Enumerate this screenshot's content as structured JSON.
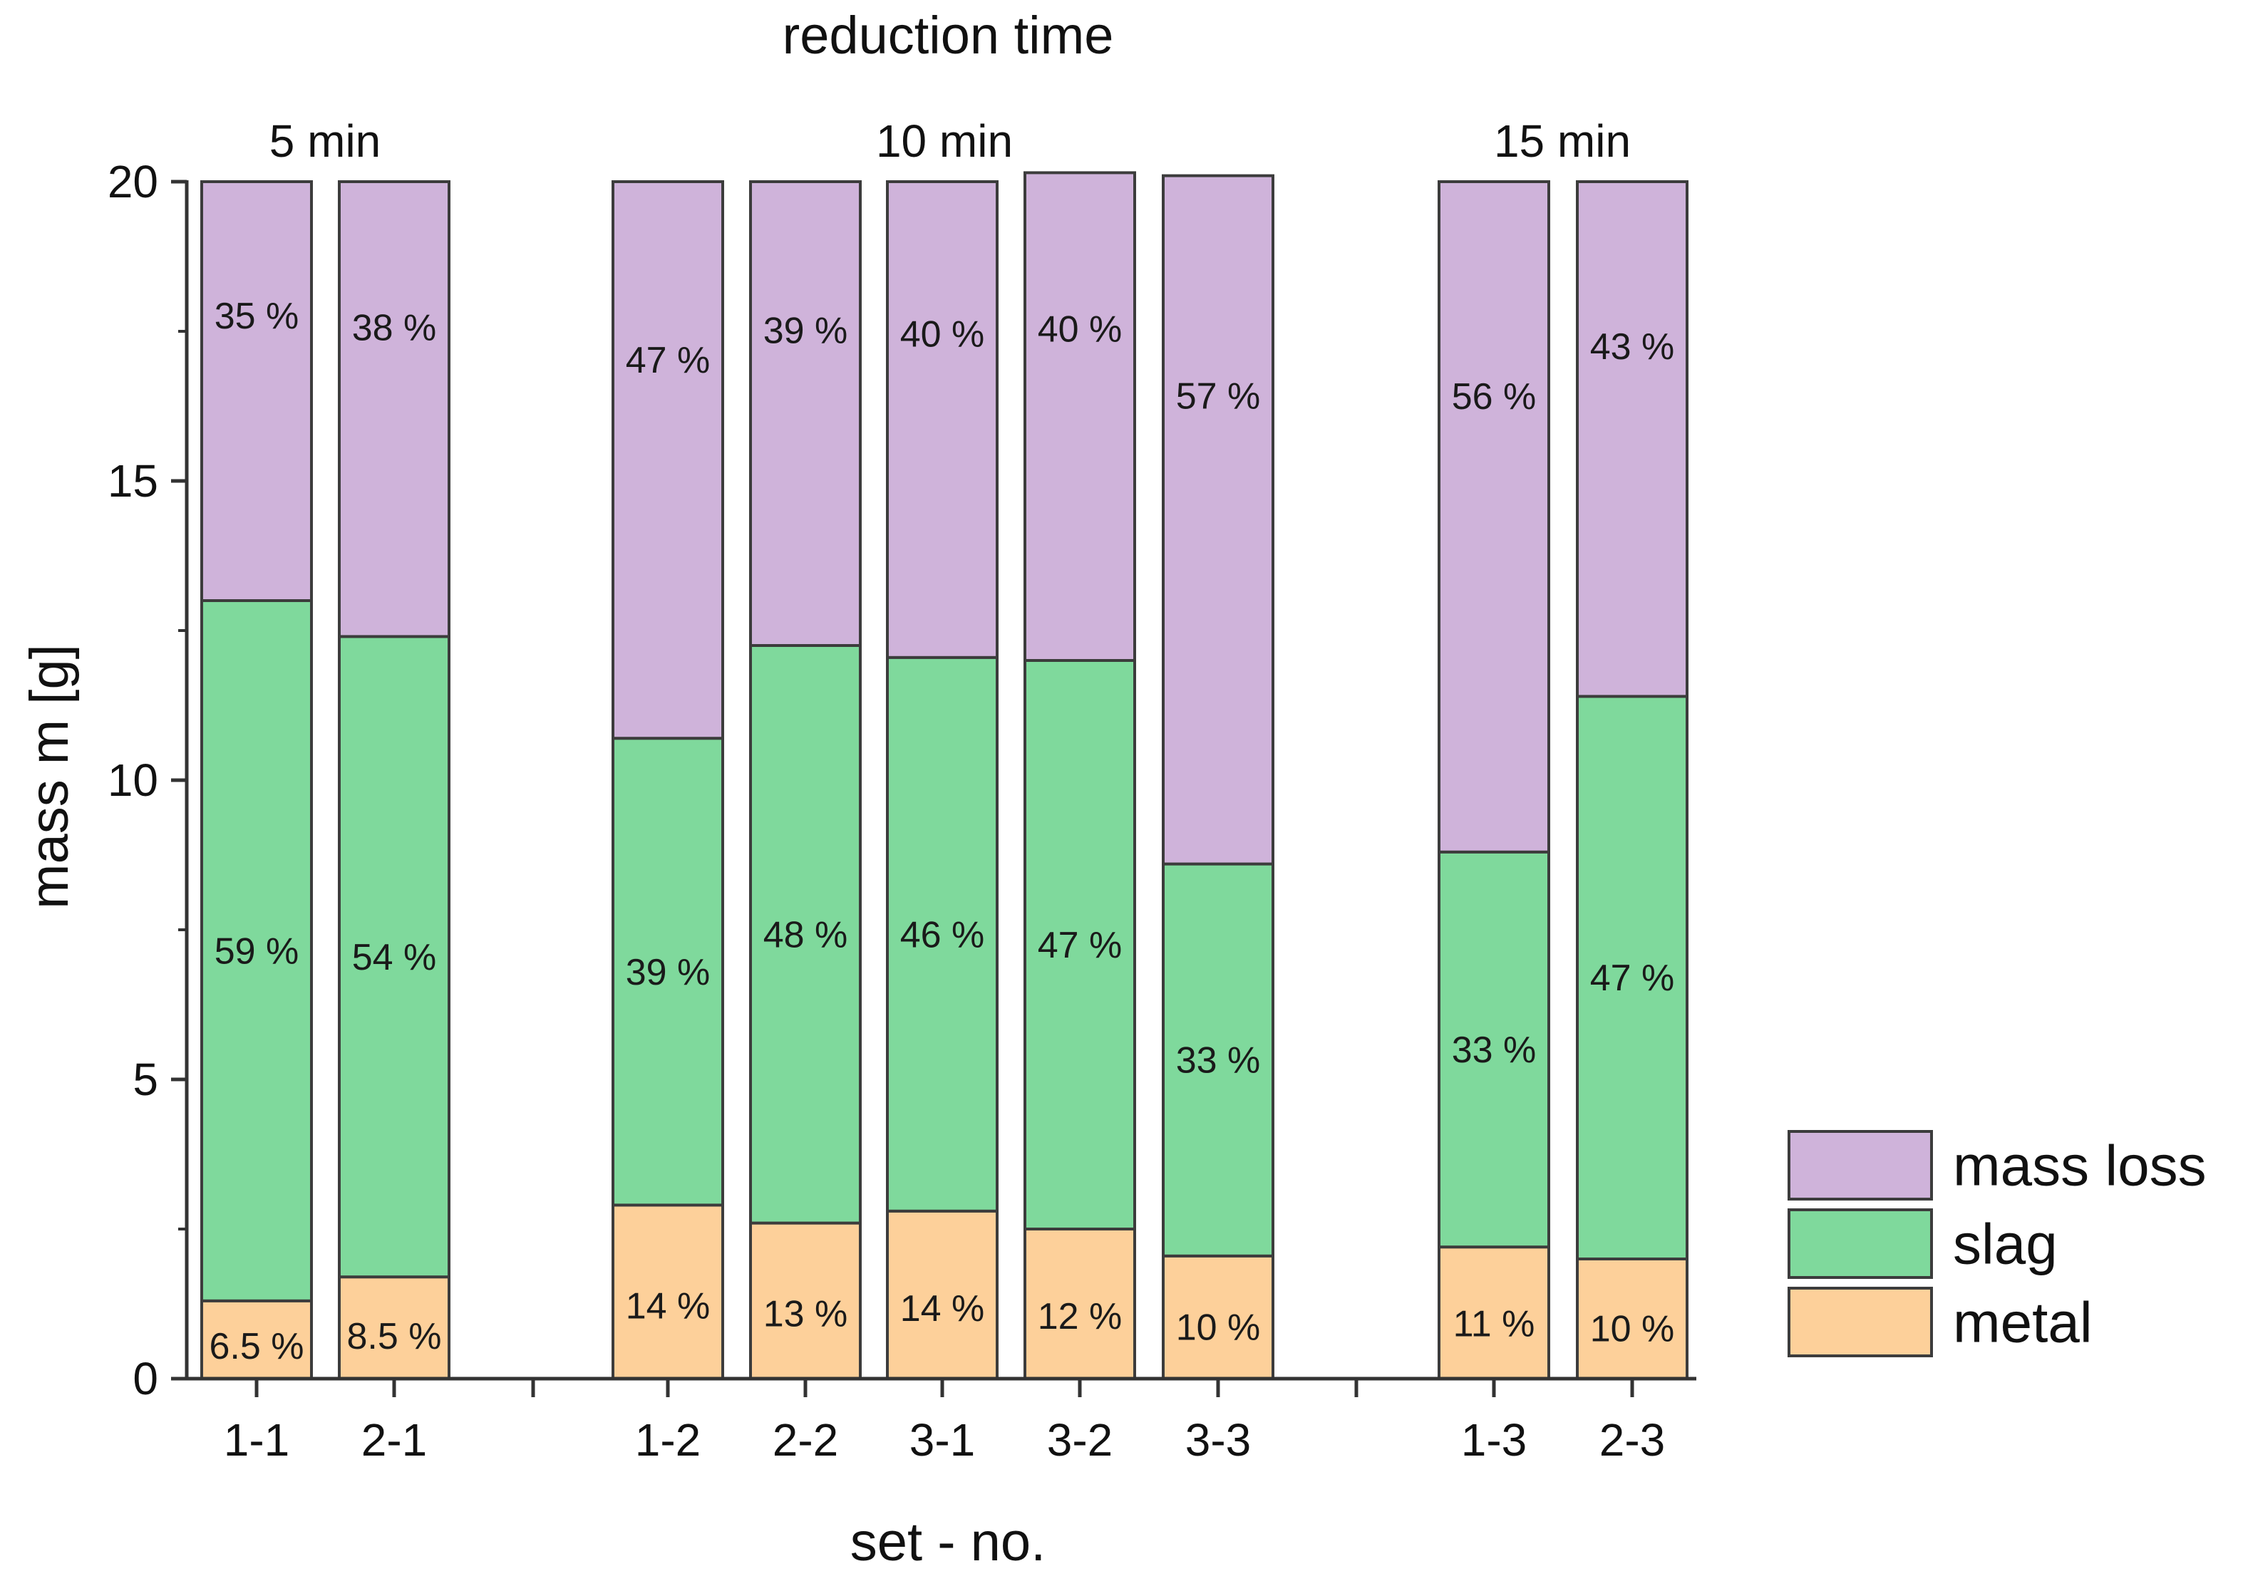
{
  "chart_data": {
    "type": "bar",
    "stacked": true,
    "title": "reduction time",
    "xlabel": "set - no.",
    "ylabel": "mass m [g]",
    "ylim": [
      0,
      20
    ],
    "yticks": [
      0,
      5,
      10,
      15,
      20
    ],
    "categories": [
      "1-1",
      "2-1",
      "1-2",
      "2-2",
      "3-1",
      "3-2",
      "3-3",
      "1-3",
      "2-3"
    ],
    "groups": [
      {
        "label": "5 min",
        "members": [
          "1-1",
          "2-1"
        ]
      },
      {
        "label": "10 min",
        "members": [
          "1-2",
          "2-2",
          "3-1",
          "3-2",
          "3-3"
        ]
      },
      {
        "label": "15 min",
        "members": [
          "1-3",
          "2-3"
        ]
      }
    ],
    "series": [
      {
        "name": "metal",
        "color": "#fdd09a",
        "values": [
          1.3,
          1.7,
          2.9,
          2.6,
          2.8,
          2.5,
          2.05,
          2.2,
          2.0
        ],
        "labels": [
          "6.5 %",
          "8.5 %",
          "14 %",
          "13 %",
          "14 %",
          "12 %",
          "10 %",
          "11 %",
          "10 %"
        ]
      },
      {
        "name": "slag",
        "color": "#7fd99c",
        "values": [
          11.7,
          10.7,
          7.8,
          9.65,
          9.25,
          9.5,
          6.55,
          6.6,
          9.4
        ],
        "labels": [
          "59 %",
          "54 %",
          "39 %",
          "48 %",
          "46 %",
          "47 %",
          "33 %",
          "33 %",
          "47 %"
        ]
      },
      {
        "name": "mass loss",
        "color": "#cfb3da",
        "values": [
          7.0,
          7.6,
          9.3,
          7.75,
          7.95,
          8.15,
          11.5,
          11.2,
          8.6
        ],
        "labels": [
          "35 %",
          "38 %",
          "47 %",
          "39 %",
          "40 %",
          "40 %",
          "57 %",
          "56 %",
          "43 %"
        ]
      }
    ],
    "legend": {
      "position": "bottom-right",
      "order": [
        "mass loss",
        "slag",
        "metal"
      ]
    }
  }
}
